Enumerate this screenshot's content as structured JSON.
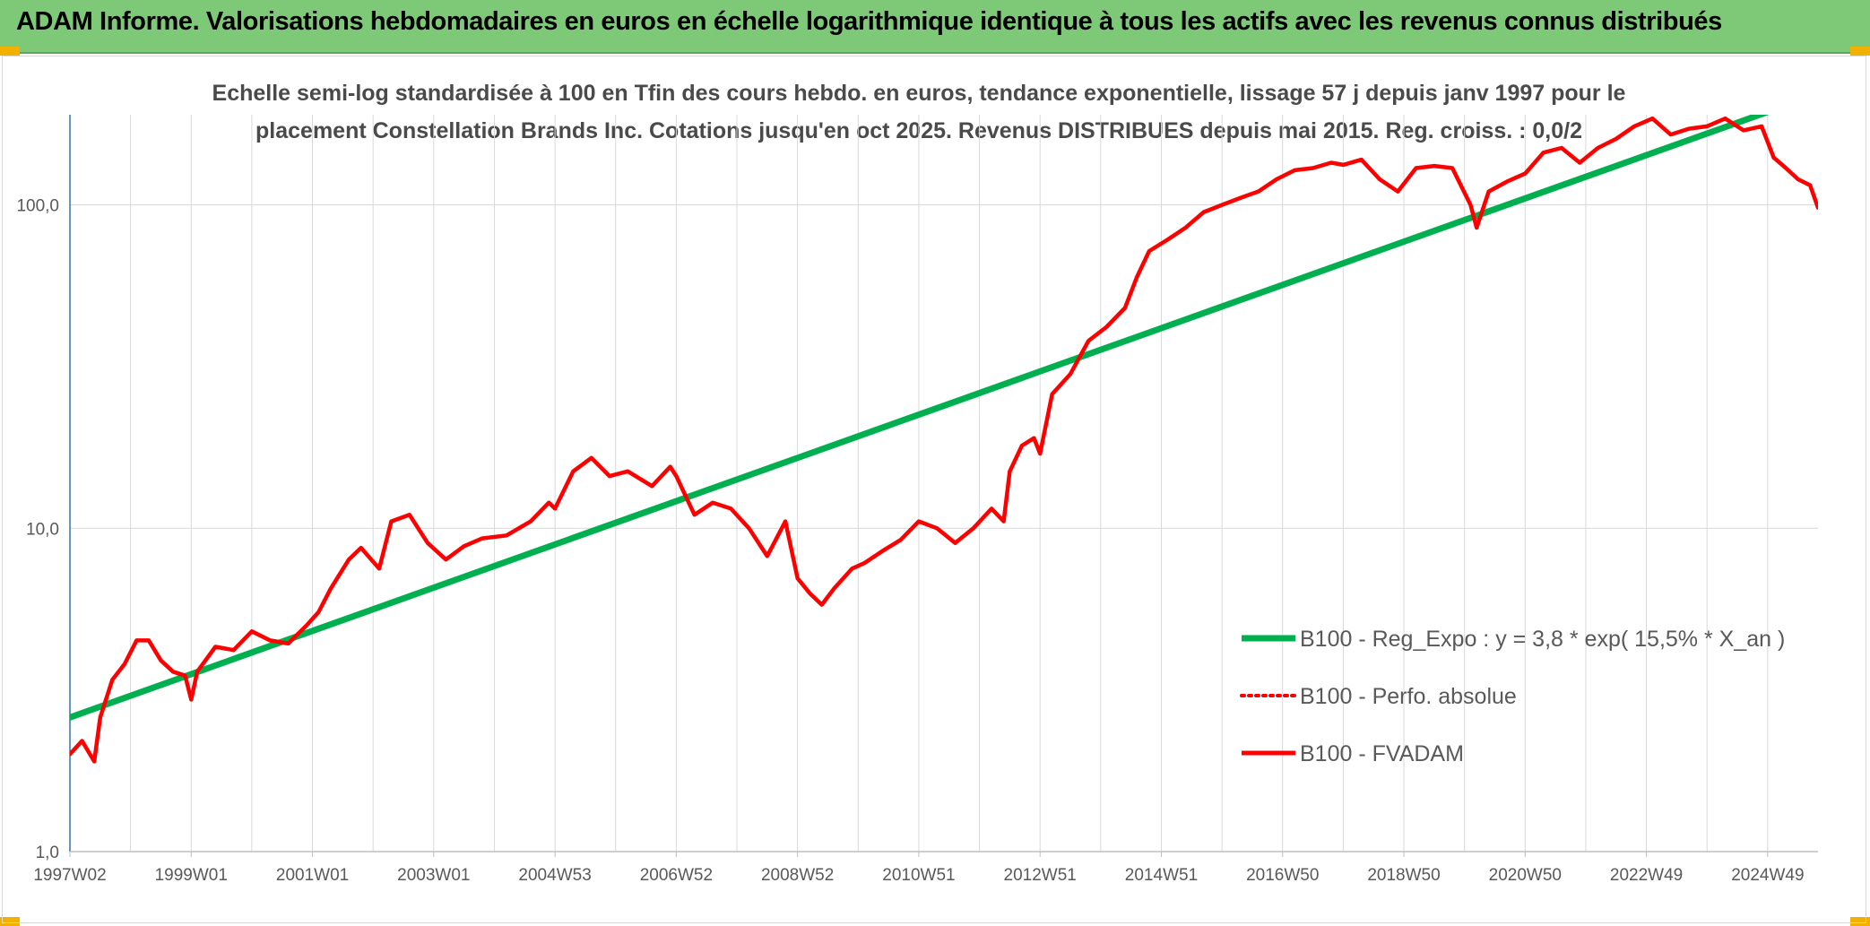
{
  "banner": {
    "title": "ADAM Informe. Valorisations hebdomadaires en euros en échelle logarithmique identique à tous les actifs avec les revenus connus distribués"
  },
  "colors": {
    "banner_bg": "#7dc978",
    "corner_accent": "#f2b100",
    "regression": "#00b050",
    "fvadam": "#ff0000",
    "grid": "#d9d9d9",
    "axis": "#2e75b6"
  },
  "chart_data": {
    "type": "line",
    "title_line1": "Echelle semi-log standardisée à 100 en Tfin des cours hebdo. en euros, tendance exponentielle, lissage 57 j depuis janv 1997 pour le",
    "title_line2": "placement Constellation Brands Inc. Cotations jusqu'en oct 2025. Revenus DISTRIBUES depuis mai 2015. Reg. croiss. : 0,0/2",
    "y_scale": "log",
    "ylim": [
      1,
      190
    ],
    "y_ticks": [
      {
        "value": 1,
        "label": "1,0"
      },
      {
        "value": 10,
        "label": "10,0"
      },
      {
        "value": 100,
        "label": "100,0"
      }
    ],
    "xlim": [
      1997.0,
      2025.83
    ],
    "x_ticks": [
      {
        "value": 1997.0,
        "label": "1997W02"
      },
      {
        "value": 1999.0,
        "label": "1999W01"
      },
      {
        "value": 2001.0,
        "label": "2001W01"
      },
      {
        "value": 2003.0,
        "label": "2003W01"
      },
      {
        "value": 2005.0,
        "label": "2004W53"
      },
      {
        "value": 2007.0,
        "label": "2006W52"
      },
      {
        "value": 2009.0,
        "label": "2008W52"
      },
      {
        "value": 2011.0,
        "label": "2010W51"
      },
      {
        "value": 2013.0,
        "label": "2012W51"
      },
      {
        "value": 2015.0,
        "label": "2014W51"
      },
      {
        "value": 2017.0,
        "label": "2016W50"
      },
      {
        "value": 2019.0,
        "label": "2018W50"
      },
      {
        "value": 2021.0,
        "label": "2020W50"
      },
      {
        "value": 2023.0,
        "label": "2022W49"
      },
      {
        "value": 2025.0,
        "label": "2024W49"
      }
    ],
    "grid": true,
    "legend_position": "bottom-right",
    "series": [
      {
        "name": "B100 - Reg_Expo : y = 3,8 * exp( 15,5% *  X_an )",
        "style": "solid-thick",
        "color": "#00b050",
        "x": [
          1997.0,
          2025.2
        ],
        "y": [
          2.6,
          200
        ]
      },
      {
        "name": "B100 - Perfo. absolue",
        "style": "dotted",
        "color": "#ff0000",
        "x": [],
        "y": []
      },
      {
        "name": "B100 - FVADAM",
        "style": "solid",
        "color": "#ff0000",
        "x": [
          1997.0,
          1997.2,
          1997.4,
          1997.5,
          1997.7,
          1997.9,
          1998.1,
          1998.3,
          1998.5,
          1998.7,
          1998.9,
          1999.0,
          1999.1,
          1999.4,
          1999.7,
          2000.0,
          2000.3,
          2000.6,
          2000.9,
          2001.1,
          2001.3,
          2001.6,
          2001.8,
          2002.1,
          2002.3,
          2002.6,
          2002.9,
          2003.2,
          2003.5,
          2003.8,
          2004.2,
          2004.6,
          2004.9,
          2005.0,
          2005.3,
          2005.6,
          2005.9,
          2006.2,
          2006.6,
          2006.9,
          2007.0,
          2007.3,
          2007.6,
          2007.9,
          2008.2,
          2008.5,
          2008.8,
          2009.0,
          2009.2,
          2009.4,
          2009.6,
          2009.9,
          2010.1,
          2010.4,
          2010.7,
          2011.0,
          2011.3,
          2011.6,
          2011.9,
          2012.2,
          2012.4,
          2012.5,
          2012.7,
          2012.9,
          2013.0,
          2013.2,
          2013.5,
          2013.8,
          2014.1,
          2014.4,
          2014.6,
          2014.8,
          2015.1,
          2015.4,
          2015.7,
          2016.0,
          2016.3,
          2016.6,
          2016.9,
          2017.2,
          2017.5,
          2017.8,
          2018.0,
          2018.3,
          2018.6,
          2018.9,
          2019.2,
          2019.5,
          2019.8,
          2020.1,
          2020.2,
          2020.4,
          2020.7,
          2021.0,
          2021.3,
          2021.6,
          2021.9,
          2022.2,
          2022.5,
          2022.8,
          2023.1,
          2023.4,
          2023.7,
          2024.0,
          2024.3,
          2024.6,
          2024.9,
          2025.1,
          2025.3,
          2025.5,
          2025.7,
          2025.83
        ],
        "y": [
          2.0,
          2.2,
          1.9,
          2.6,
          3.4,
          3.8,
          4.5,
          4.5,
          3.9,
          3.6,
          3.5,
          2.95,
          3.6,
          4.3,
          4.2,
          4.8,
          4.5,
          4.4,
          5.0,
          5.5,
          6.5,
          8.0,
          8.7,
          7.5,
          10.5,
          11.0,
          9.0,
          8.0,
          8.8,
          9.3,
          9.5,
          10.5,
          12.0,
          11.5,
          15.0,
          16.5,
          14.5,
          15.0,
          13.5,
          15.5,
          14.5,
          11.0,
          12.0,
          11.5,
          10.0,
          8.2,
          10.5,
          7.0,
          6.3,
          5.8,
          6.5,
          7.5,
          7.8,
          8.5,
          9.2,
          10.5,
          10.0,
          9.0,
          10.0,
          11.5,
          10.5,
          15.0,
          18.0,
          19.0,
          17.0,
          26.0,
          30.0,
          38.0,
          42.0,
          48.0,
          60.0,
          72.0,
          78.0,
          85.0,
          95.0,
          100.0,
          105.0,
          110.0,
          120.0,
          128.0,
          130.0,
          135.0,
          133.0,
          138.0,
          120.0,
          110.0,
          130.0,
          132.0,
          130.0,
          100.0,
          85.0,
          110.0,
          118.0,
          125.0,
          145.0,
          150.0,
          135.0,
          150.0,
          160.0,
          175.0,
          185.0,
          165.0,
          172.0,
          175.0,
          185.0,
          170.0,
          175.0,
          140.0,
          130.0,
          120.0,
          115.0,
          98.0
        ]
      }
    ]
  }
}
